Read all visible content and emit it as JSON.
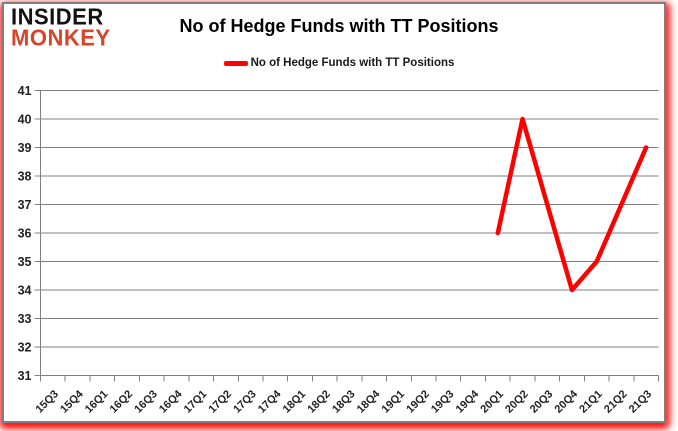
{
  "logo": {
    "line1": "INSIDER",
    "line2": "MONKEY",
    "accent_color": "#d8432a"
  },
  "header": {
    "title": "No of Hedge Funds with TT Positions"
  },
  "legend": {
    "label": "No of Hedge Funds with TT Positions",
    "line_color": "#ff0000"
  },
  "chart_data": {
    "type": "line",
    "title": "No of Hedge Funds with TT Positions",
    "categories": [
      "15Q3",
      "15Q4",
      "16Q1",
      "16Q2",
      "16Q3",
      "16Q4",
      "17Q1",
      "17Q2",
      "17Q3",
      "17Q4",
      "18Q1",
      "18Q2",
      "18Q3",
      "18Q4",
      "19Q1",
      "19Q2",
      "19Q3",
      "19Q4",
      "20Q1",
      "20Q2",
      "20Q3",
      "20Q4",
      "21Q1",
      "21Q2",
      "21Q3"
    ],
    "series": [
      {
        "name": "No of Hedge Funds with TT Positions",
        "color": "#ff0000",
        "values": [
          null,
          null,
          null,
          null,
          null,
          null,
          null,
          null,
          null,
          null,
          null,
          null,
          null,
          null,
          null,
          null,
          null,
          null,
          36,
          40,
          37,
          34,
          35,
          37,
          39
        ]
      }
    ],
    "xlabel": "",
    "ylabel": "",
    "ylim": [
      31,
      41
    ],
    "y_tick_step": 1,
    "grid": true,
    "gridline_color": "#808080",
    "axis_color": "#808080",
    "legend_position": "top"
  }
}
